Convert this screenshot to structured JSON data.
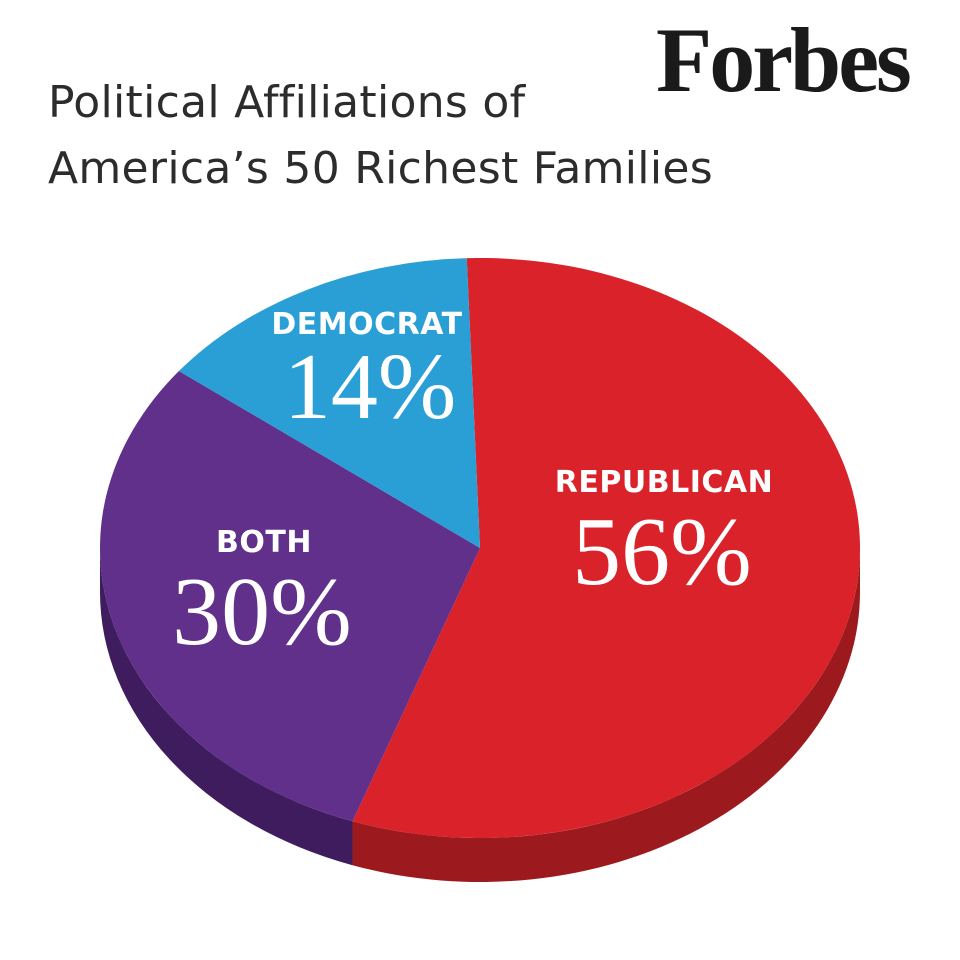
{
  "logo": "Forbes",
  "title_lines": [
    "Political Affiliations of",
    "America’s 50 Richest Families"
  ],
  "chart_data": {
    "type": "pie",
    "title": "Political Affiliations of America’s 50 Richest Families",
    "slices": [
      {
        "label": "REPUBLICAN",
        "value": 56,
        "value_text": "56%",
        "color": "#d92229",
        "side_color": "#9c1a1e"
      },
      {
        "label": "BOTH",
        "value": 30,
        "value_text": "30%",
        "color": "#60308a",
        "side_color": "#3f1c5e"
      },
      {
        "label": "DEMOCRAT",
        "value": 14,
        "value_text": "14%",
        "color": "#2a9fd6",
        "side_color": "#1d7aa8"
      }
    ]
  }
}
